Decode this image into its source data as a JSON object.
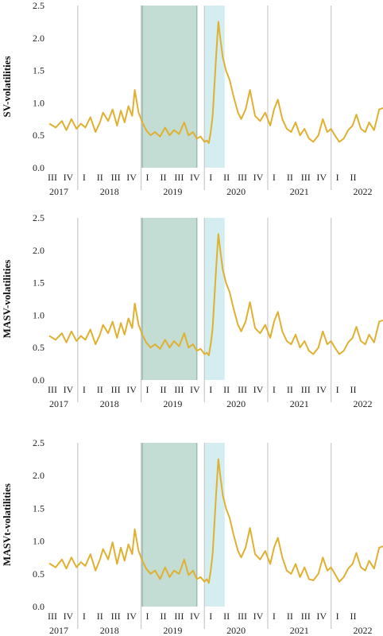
{
  "colors": {
    "series": "#E0B030",
    "shade_green": "#C3DDD4",
    "shade_cyan": "#D3EDF0",
    "shade_border": "#9BBDB3",
    "grid": "#C9C9C9"
  },
  "chart_data": [
    {
      "type": "line",
      "ylabel": "SV-volatilities",
      "ylim": [
        0,
        2.5
      ],
      "yticks": [
        "0.0",
        "0.5",
        "1.0",
        "1.5",
        "2.0",
        "2.5"
      ],
      "xlim": [
        2017.45,
        2022.72
      ],
      "quarter_labels": [
        {
          "label": "III",
          "x": 2017.5
        },
        {
          "label": "IV",
          "x": 2017.75
        },
        {
          "label": "I",
          "x": 2018.0
        },
        {
          "label": "II",
          "x": 2018.25
        },
        {
          "label": "III",
          "x": 2018.5
        },
        {
          "label": "IV",
          "x": 2018.75
        },
        {
          "label": "I",
          "x": 2019.0
        },
        {
          "label": "II",
          "x": 2019.25
        },
        {
          "label": "III",
          "x": 2019.5
        },
        {
          "label": "IV",
          "x": 2019.75
        },
        {
          "label": "I",
          "x": 2020.0
        },
        {
          "label": "II",
          "x": 2020.25
        },
        {
          "label": "III",
          "x": 2020.5
        },
        {
          "label": "IV",
          "x": 2020.75
        },
        {
          "label": "I",
          "x": 2021.0
        },
        {
          "label": "II",
          "x": 2021.25
        },
        {
          "label": "III",
          "x": 2021.5
        },
        {
          "label": "IV",
          "x": 2021.75
        },
        {
          "label": "I",
          "x": 2022.0
        },
        {
          "label": "II",
          "x": 2022.25
        }
      ],
      "year_labels": [
        {
          "label": "2017",
          "x": 2017.6
        },
        {
          "label": "2018",
          "x": 2018.4
        },
        {
          "label": "2019",
          "x": 2019.4
        },
        {
          "label": "2020",
          "x": 2020.4
        },
        {
          "label": "2021",
          "x": 2021.4
        },
        {
          "label": "2022",
          "x": 2022.4
        }
      ],
      "year_boundaries": [
        2017.9,
        2018.9,
        2019.9,
        2020.9,
        2021.9
      ],
      "shaded_regions": [
        {
          "from": 2018.9,
          "to": 2019.78,
          "color_key": "shade_green"
        },
        {
          "from": 2019.9,
          "to": 2020.22,
          "color_key": "shade_cyan"
        }
      ],
      "series": [
        {
          "x": [
            2017.45,
            2017.55,
            2017.65,
            2017.72,
            2017.8,
            2017.88,
            2017.95,
            2018.02,
            2018.1,
            2018.18,
            2018.25,
            2018.3,
            2018.38,
            2018.45,
            2018.52,
            2018.58,
            2018.64,
            2018.7,
            2018.76,
            2018.8,
            2018.86,
            2018.92,
            2018.98,
            2019.05,
            2019.12,
            2019.2,
            2019.28,
            2019.35,
            2019.42,
            2019.5,
            2019.58,
            2019.65,
            2019.72,
            2019.78,
            2019.84,
            2019.9,
            2019.94,
            2019.97,
            2020.0,
            2020.03,
            2020.06,
            2020.09,
            2020.12,
            2020.15,
            2020.19,
            2020.24,
            2020.3,
            2020.36,
            2020.43,
            2020.48,
            2020.55,
            2020.62,
            2020.7,
            2020.78,
            2020.86,
            2020.94,
            2021.0,
            2021.06,
            2021.13,
            2021.2,
            2021.27,
            2021.34,
            2021.41,
            2021.48,
            2021.55,
            2021.62,
            2021.7,
            2021.77,
            2021.84,
            2021.9,
            2021.96,
            2022.03,
            2022.1,
            2022.17,
            2022.24,
            2022.3,
            2022.37,
            2022.44,
            2022.5,
            2022.58,
            2022.66,
            2022.72
          ],
          "y": [
            0.68,
            0.62,
            0.72,
            0.58,
            0.75,
            0.6,
            0.68,
            0.62,
            0.78,
            0.55,
            0.7,
            0.85,
            0.72,
            0.9,
            0.65,
            0.88,
            0.7,
            0.95,
            0.8,
            1.2,
            0.85,
            0.7,
            0.58,
            0.5,
            0.55,
            0.48,
            0.62,
            0.5,
            0.58,
            0.52,
            0.7,
            0.5,
            0.55,
            0.45,
            0.48,
            0.4,
            0.42,
            0.38,
            0.55,
            0.8,
            1.3,
            1.8,
            2.25,
            2.0,
            1.7,
            1.5,
            1.35,
            1.1,
            0.85,
            0.75,
            0.9,
            1.2,
            0.8,
            0.72,
            0.85,
            0.65,
            0.9,
            1.05,
            0.75,
            0.6,
            0.55,
            0.7,
            0.5,
            0.6,
            0.45,
            0.4,
            0.5,
            0.75,
            0.55,
            0.6,
            0.5,
            0.4,
            0.45,
            0.58,
            0.65,
            0.82,
            0.6,
            0.55,
            0.7,
            0.58,
            0.9,
            0.92
          ]
        }
      ]
    },
    {
      "type": "line",
      "ylabel": "MASV-volatilities",
      "ylim": [
        0,
        2.5
      ],
      "yticks": [
        "0.0",
        "0.5",
        "1.0",
        "1.5",
        "2.0",
        "2.5"
      ],
      "xlim": [
        2017.45,
        2022.72
      ],
      "quarter_labels": [
        {
          "label": "III",
          "x": 2017.5
        },
        {
          "label": "IV",
          "x": 2017.75
        },
        {
          "label": "I",
          "x": 2018.0
        },
        {
          "label": "II",
          "x": 2018.25
        },
        {
          "label": "III",
          "x": 2018.5
        },
        {
          "label": "IV",
          "x": 2018.75
        },
        {
          "label": "I",
          "x": 2019.0
        },
        {
          "label": "II",
          "x": 2019.25
        },
        {
          "label": "III",
          "x": 2019.5
        },
        {
          "label": "IV",
          "x": 2019.75
        },
        {
          "label": "I",
          "x": 2020.0
        },
        {
          "label": "II",
          "x": 2020.25
        },
        {
          "label": "III",
          "x": 2020.5
        },
        {
          "label": "IV",
          "x": 2020.75
        },
        {
          "label": "I",
          "x": 2021.0
        },
        {
          "label": "II",
          "x": 2021.25
        },
        {
          "label": "III",
          "x": 2021.5
        },
        {
          "label": "IV",
          "x": 2021.75
        },
        {
          "label": "I",
          "x": 2022.0
        },
        {
          "label": "II",
          "x": 2022.25
        }
      ],
      "year_labels": [
        {
          "label": "2017",
          "x": 2017.6
        },
        {
          "label": "2018",
          "x": 2018.4
        },
        {
          "label": "2019",
          "x": 2019.4
        },
        {
          "label": "2020",
          "x": 2020.4
        },
        {
          "label": "2021",
          "x": 2021.4
        },
        {
          "label": "2022",
          "x": 2022.4
        }
      ],
      "year_boundaries": [
        2017.9,
        2018.9,
        2019.9,
        2020.9,
        2021.9
      ],
      "shaded_regions": [
        {
          "from": 2018.9,
          "to": 2019.78,
          "color_key": "shade_green"
        },
        {
          "from": 2019.9,
          "to": 2020.22,
          "color_key": "shade_cyan"
        }
      ],
      "series": [
        {
          "x": [
            2017.45,
            2017.55,
            2017.65,
            2017.72,
            2017.8,
            2017.88,
            2017.95,
            2018.02,
            2018.1,
            2018.18,
            2018.25,
            2018.3,
            2018.38,
            2018.45,
            2018.52,
            2018.58,
            2018.64,
            2018.7,
            2018.76,
            2018.8,
            2018.86,
            2018.92,
            2018.98,
            2019.05,
            2019.12,
            2019.2,
            2019.28,
            2019.35,
            2019.42,
            2019.5,
            2019.58,
            2019.65,
            2019.72,
            2019.78,
            2019.84,
            2019.9,
            2019.94,
            2019.97,
            2020.0,
            2020.03,
            2020.06,
            2020.09,
            2020.12,
            2020.15,
            2020.19,
            2020.24,
            2020.3,
            2020.36,
            2020.43,
            2020.48,
            2020.55,
            2020.62,
            2020.7,
            2020.78,
            2020.86,
            2020.94,
            2021.0,
            2021.06,
            2021.13,
            2021.2,
            2021.27,
            2021.34,
            2021.41,
            2021.48,
            2021.55,
            2021.62,
            2021.7,
            2021.77,
            2021.84,
            2021.9,
            2021.96,
            2022.03,
            2022.1,
            2022.17,
            2022.24,
            2022.3,
            2022.37,
            2022.44,
            2022.5,
            2022.58,
            2022.66,
            2022.72
          ],
          "y": [
            0.68,
            0.62,
            0.72,
            0.58,
            0.75,
            0.6,
            0.68,
            0.62,
            0.78,
            0.55,
            0.7,
            0.85,
            0.72,
            0.9,
            0.65,
            0.88,
            0.7,
            0.95,
            0.8,
            1.18,
            0.85,
            0.7,
            0.58,
            0.5,
            0.55,
            0.48,
            0.62,
            0.5,
            0.6,
            0.52,
            0.72,
            0.5,
            0.55,
            0.45,
            0.48,
            0.4,
            0.42,
            0.38,
            0.55,
            0.8,
            1.3,
            1.8,
            2.25,
            2.0,
            1.7,
            1.5,
            1.35,
            1.1,
            0.85,
            0.75,
            0.9,
            1.2,
            0.8,
            0.72,
            0.85,
            0.65,
            0.9,
            1.05,
            0.75,
            0.6,
            0.55,
            0.7,
            0.5,
            0.6,
            0.45,
            0.4,
            0.5,
            0.75,
            0.55,
            0.6,
            0.5,
            0.4,
            0.45,
            0.58,
            0.65,
            0.82,
            0.6,
            0.55,
            0.7,
            0.58,
            0.9,
            0.92
          ]
        }
      ]
    },
    {
      "type": "line",
      "ylabel": "MASVt-volatilities",
      "ylim": [
        0,
        2.5
      ],
      "yticks": [
        "0.0",
        "0.5",
        "1.0",
        "1.5",
        "2.0",
        "2.5"
      ],
      "xlim": [
        2017.45,
        2022.72
      ],
      "quarter_labels": [
        {
          "label": "III",
          "x": 2017.5
        },
        {
          "label": "IV",
          "x": 2017.75
        },
        {
          "label": "I",
          "x": 2018.0
        },
        {
          "label": "II",
          "x": 2018.25
        },
        {
          "label": "III",
          "x": 2018.5
        },
        {
          "label": "IV",
          "x": 2018.75
        },
        {
          "label": "I",
          "x": 2019.0
        },
        {
          "label": "II",
          "x": 2019.25
        },
        {
          "label": "III",
          "x": 2019.5
        },
        {
          "label": "IV",
          "x": 2019.75
        },
        {
          "label": "I",
          "x": 2020.0
        },
        {
          "label": "II",
          "x": 2020.25
        },
        {
          "label": "III",
          "x": 2020.5
        },
        {
          "label": "IV",
          "x": 2020.75
        },
        {
          "label": "I",
          "x": 2021.0
        },
        {
          "label": "II",
          "x": 2021.25
        },
        {
          "label": "III",
          "x": 2021.5
        },
        {
          "label": "IV",
          "x": 2021.75
        },
        {
          "label": "I",
          "x": 2022.0
        },
        {
          "label": "II",
          "x": 2022.25
        }
      ],
      "year_labels": [
        {
          "label": "2017",
          "x": 2017.6
        },
        {
          "label": "2018",
          "x": 2018.4
        },
        {
          "label": "2019",
          "x": 2019.4
        },
        {
          "label": "2020",
          "x": 2020.4
        },
        {
          "label": "2021",
          "x": 2021.4
        },
        {
          "label": "2022",
          "x": 2022.4
        }
      ],
      "year_boundaries": [
        2017.9,
        2018.9,
        2019.9,
        2020.9,
        2021.9
      ],
      "shaded_regions": [
        {
          "from": 2018.9,
          "to": 2019.78,
          "color_key": "shade_green"
        },
        {
          "from": 2019.9,
          "to": 2020.22,
          "color_key": "shade_cyan"
        }
      ],
      "series": [
        {
          "x": [
            2017.45,
            2017.55,
            2017.65,
            2017.72,
            2017.8,
            2017.88,
            2017.95,
            2018.02,
            2018.1,
            2018.18,
            2018.25,
            2018.3,
            2018.38,
            2018.45,
            2018.52,
            2018.58,
            2018.64,
            2018.7,
            2018.76,
            2018.8,
            2018.86,
            2018.92,
            2018.98,
            2019.05,
            2019.12,
            2019.2,
            2019.28,
            2019.35,
            2019.42,
            2019.5,
            2019.58,
            2019.65,
            2019.72,
            2019.78,
            2019.84,
            2019.9,
            2019.94,
            2019.97,
            2020.0,
            2020.03,
            2020.06,
            2020.09,
            2020.12,
            2020.15,
            2020.19,
            2020.24,
            2020.3,
            2020.36,
            2020.43,
            2020.48,
            2020.55,
            2020.62,
            2020.7,
            2020.78,
            2020.86,
            2020.94,
            2021.0,
            2021.06,
            2021.13,
            2021.2,
            2021.27,
            2021.34,
            2021.41,
            2021.48,
            2021.55,
            2021.62,
            2021.7,
            2021.77,
            2021.84,
            2021.9,
            2021.96,
            2022.03,
            2022.1,
            2022.17,
            2022.24,
            2022.3,
            2022.37,
            2022.44,
            2022.5,
            2022.58,
            2022.66,
            2022.72
          ],
          "y": [
            0.66,
            0.6,
            0.72,
            0.58,
            0.75,
            0.6,
            0.68,
            0.62,
            0.8,
            0.55,
            0.72,
            0.88,
            0.72,
            0.98,
            0.65,
            0.9,
            0.7,
            0.95,
            0.8,
            1.18,
            0.85,
            0.7,
            0.58,
            0.5,
            0.55,
            0.42,
            0.6,
            0.45,
            0.55,
            0.5,
            0.72,
            0.48,
            0.55,
            0.42,
            0.45,
            0.38,
            0.42,
            0.36,
            0.55,
            0.8,
            1.3,
            1.8,
            2.25,
            2.0,
            1.7,
            1.5,
            1.35,
            1.1,
            0.85,
            0.75,
            0.9,
            1.2,
            0.8,
            0.72,
            0.85,
            0.65,
            0.9,
            1.05,
            0.75,
            0.55,
            0.5,
            0.65,
            0.45,
            0.6,
            0.42,
            0.4,
            0.5,
            0.75,
            0.55,
            0.6,
            0.5,
            0.38,
            0.45,
            0.58,
            0.65,
            0.82,
            0.6,
            0.55,
            0.7,
            0.58,
            0.9,
            0.92
          ]
        }
      ]
    }
  ]
}
